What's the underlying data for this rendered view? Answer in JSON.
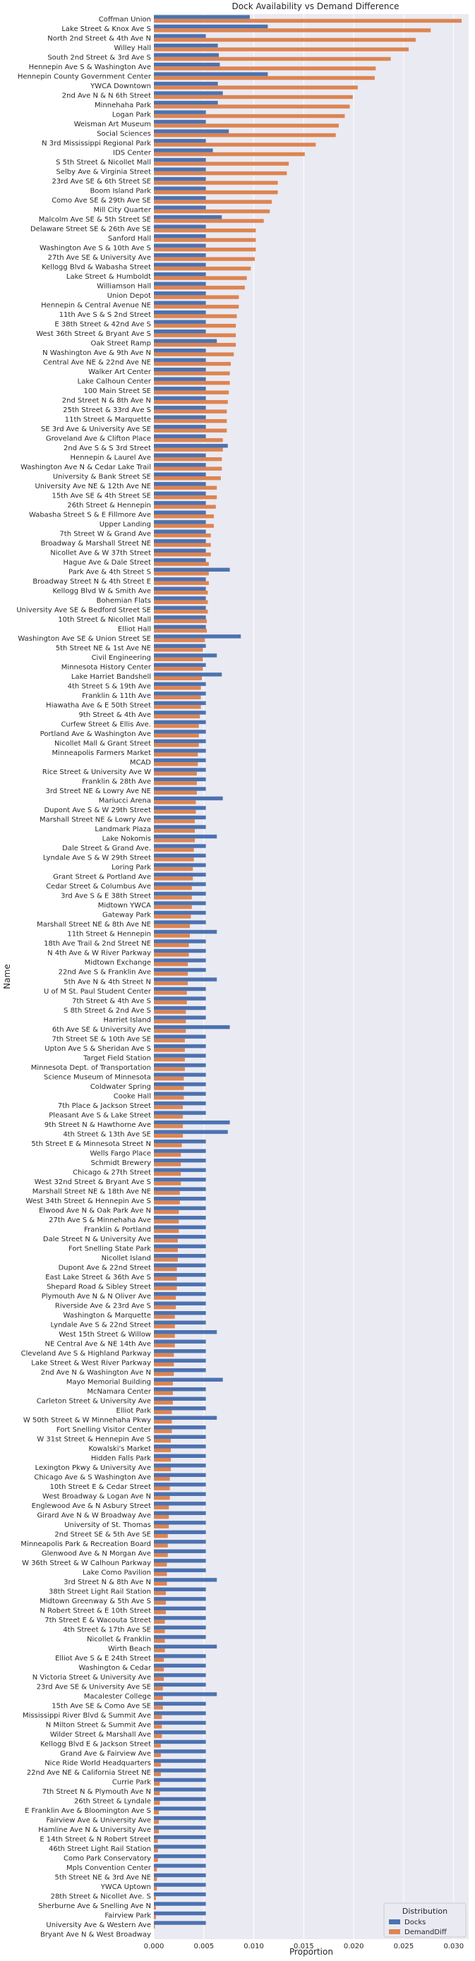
{
  "chart_data": {
    "type": "bar",
    "orientation": "horizontal",
    "title": "Dock Availability vs Demand Difference",
    "xlabel": "Proportion",
    "ylabel": "Name",
    "xlim": [
      0,
      0.0315
    ],
    "xticks": [
      "0.000",
      "0.005",
      "0.010",
      "0.015",
      "0.020",
      "0.025",
      "0.030"
    ],
    "grid": true,
    "legend": {
      "title": "Distribution",
      "position": "bottom-right"
    },
    "series": [
      {
        "name": "Docks",
        "color": "#4c72b0"
      },
      {
        "name": "DemandDiff",
        "color": "#dd8452"
      }
    ],
    "categories": [
      "Coffman Union",
      "Lake Street & Knox Ave S",
      "North 2nd Street & 4th Ave N",
      "Willey Hall",
      "South 2nd Street & 3rd Ave S",
      "Hennepin Ave S & Washington Ave",
      "Hennepin County Government Center",
      "YWCA Downtown",
      "2nd Ave N & N 6th Street",
      "Minnehaha Park",
      "Logan Park",
      "Weisman Art Museum",
      "Social Sciences",
      "N 3rd Mississippi Regional Park",
      "IDS Center",
      "S 5th Street & Nicollet Mall",
      "Selby Ave & Virginia Street",
      "23rd Ave SE & 6th Street SE",
      "Boom Island Park",
      "Como Ave SE & 29th Ave SE",
      "Mill City Quarter",
      "Malcolm Ave SE & 5th Street SE",
      "Delaware Street SE & 26th Ave SE",
      "Sanford Hall",
      "Washington Ave S & 10th Ave S",
      "27th Ave SE & University Ave",
      "Kellogg Blvd & Wabasha Street",
      "Lake Street & Humboldt",
      "Williamson Hall",
      "Union Depot",
      "Hennepin & Central Avenue NE",
      "11th Ave S & S 2nd Street",
      "E 38th Street & 42nd Ave S",
      "West 36th Street & Bryant Ave S",
      "Oak Street Ramp",
      "N Washington Ave & 9th Ave N",
      "Central Ave NE & 22nd Ave NE",
      "Walker Art Center",
      "Lake Calhoun Center",
      "100 Main Street SE",
      "2nd Street N & 8th Ave N",
      "25th Street & 33rd Ave S",
      "11th Street & Marquette",
      "SE 3rd Ave & University Ave SE",
      "Groveland Ave & Clifton Place",
      "2nd Ave S & S 3rd Street",
      "Hennepin & Laurel Ave",
      "Washington Ave N & Cedar Lake Trail",
      "University & Bank Street SE",
      "University Ave NE & 12th Ave NE",
      "15th Ave SE & 4th Street SE",
      "26th Street & Hennepin",
      "Wabasha Street S & E Fillmore Ave",
      "Upper Landing",
      "7th Street W & Grand Ave",
      "Broadway & Marshall Street NE",
      "Nicollet Ave & W 37th Street",
      "Hague Ave & Dale Street",
      "Park Ave & 4th Street S",
      "Broadway Street N & 4th Street E",
      "Kellogg Blvd W & Smith Ave",
      "Bohemian Flats",
      "University Ave SE & Bedford Street SE",
      "10th Street & Nicollet Mall",
      "Elliot Hall",
      "Washington Ave SE & Union Street SE",
      "5th Street NE & 1st Ave NE",
      "Civil Engineering",
      "Minnesota History Center",
      "Lake Harriet Bandshell",
      "4th Street S & 19th Ave",
      "Franklin & 11th Ave",
      "Hiawatha Ave & E 50th Street",
      "9th Street & 4th Ave",
      "Curfew Street & Ellis Ave.",
      "Portland Ave & Washington Ave",
      "Nicollet Mall & Grant Street",
      "Minneapolis Farmers Market",
      "MCAD",
      "Rice Street & University Ave W",
      "Franklin & 28th Ave",
      "3rd Street NE & Lowry Ave NE",
      "Mariucci Arena",
      "Dupont Ave S & W 29th Street",
      "Marshall Street NE & Lowry Ave",
      "Landmark Plaza",
      "Lake Nokomis",
      "Dale Street & Grand Ave.",
      "Lyndale Ave S & W 29th Street",
      "Loring Park",
      "Grant Street & Portland Ave",
      "Cedar Street & Columbus Ave",
      "3rd Ave S & E 38th Street",
      "Midtown YWCA",
      "Gateway Park",
      "Marshall Street NE & 8th Ave NE",
      "11th Street & Hennepin",
      "18th Ave Trail & 2nd Street NE",
      "N 4th Ave & W River Parkway",
      "Midtown Exchange",
      "22nd Ave S & Franklin Ave",
      "5th Ave N & 4th Street N",
      "U of M St. Paul Student Center",
      "7th Street & 4th Ave S",
      "S 8th Street & 2nd Ave S",
      "Harriet Island",
      "6th Ave SE & University Ave",
      "7th Street SE & 10th Ave SE",
      "Upton Ave S & Sheridan Ave S",
      "Target Field Station",
      "Minnesota Dept. of Transportation",
      "Science Museum of Minnesota",
      "Coldwater Spring",
      "Cooke Hall",
      "7th Place & Jackson Street",
      "Pleasant Ave S & Lake Street",
      "9th Street N & Hawthorne Ave",
      "4th Street & 13th Ave SE",
      "5th Street E & Minnesota Street N",
      "Wells Fargo Place",
      "Schmidt Brewery",
      "Chicago & 27th Street",
      "West 32nd Street & Bryant Ave S",
      "Marshall Street NE & 18th Ave NE",
      "West 34th Street & Hennepin Ave S",
      "Elwood Ave N & Oak Park Ave N",
      "27th Ave S & Minnehaha Ave",
      "Franklin & Portland",
      "Dale Street N & University Ave",
      "Fort Snelling State Park",
      "Nicollet Island",
      "Dupont Ave & 22nd Street",
      "East Lake Street & 36th Ave S",
      "Shepard Road & Sibley Street",
      "Plymouth Ave N & N Oliver Ave",
      "Riverside Ave & 23rd Ave S",
      "Washington & Marquette",
      "Lyndale Ave S & 22nd Street",
      "West 15th Street & Willow",
      "NE Central Ave & NE 14th Ave",
      "Cleveland Ave S & Highland Parkway",
      "Lake Street & West River Parkway",
      "2nd Ave N & Washington Ave N",
      "Mayo Memorial Building",
      "McNamara Center",
      "Carleton Street & University Ave",
      "Elliot Park",
      "W 50th Street & W Minnehaha Pkwy",
      "Fort Snelling Visitor Center",
      "W 31st Street & Hennepin Ave S",
      "Kowalski's Market",
      "Hidden Falls Park",
      "Lexington Pkwy & University Ave",
      "Chicago Ave & S Washington Ave",
      "10th Street E & Cedar Street",
      "West Broadway & Logan Ave N",
      "Englewood Ave & N Asbury Street",
      "Girard Ave N & W Broadway Ave",
      "University of St. Thomas",
      "2nd Street SE & 5th Ave SE",
      "Minneapolis Park & Recreation Board",
      "Glenwood Ave & N Morgan Ave",
      "W 36th Street & W Calhoun Parkway",
      "Lake Como Pavilion",
      "3rd Street N & 8th Ave N",
      "38th Street Light Rail Station",
      "Midtown Greenway & 5th Ave S",
      "N Robert Street & E 10th Street",
      "7th Street E & Wacouta Street",
      "4th Street & 17th Ave SE",
      "Nicollet & Franklin",
      "Wirth Beach",
      "Elliot Ave S & E 24th Street",
      "Washington & Cedar",
      "N Victoria Street & University Ave",
      "23rd Ave SE & University Ave SE",
      "Macalester College",
      "15th Ave SE & Como Ave SE",
      "Mississippi River Blvd & Summit Ave",
      "N Milton Street & Summit Ave",
      "Wilder Street & Marshall Ave",
      "Kellogg Blvd E & Jackson Street",
      "Grand Ave & Fairview Ave",
      "Nice Ride World Headquarters",
      "22nd Ave NE & California Street NE",
      "Currie Park",
      "7th Street N & Plymouth Ave N",
      "26th Street & Lyndale",
      "E Franklin Ave & Bloomington Ave S",
      "Fairview Ave & University Ave",
      "Hamline Ave N & University Ave",
      "E 14th Street & N Robert Street",
      "46th Street Light Rail Station",
      "Como Park Conservatory",
      "Mpls Convention Center",
      "5th Street NE & 3rd Ave NE",
      "YWCA Uptown",
      "28th Street & Nicollet Ave. S",
      "Sherburne Ave & Snelling Ave N",
      "Fairview Park",
      "University Ave & Western Ave",
      "Bryant Ave N & West Broadway"
    ],
    "docks": [
      0.0096,
      0.0114,
      0.0052,
      0.0064,
      0.0065,
      0.0066,
      0.0114,
      0.0064,
      0.0069,
      0.0064,
      0.0052,
      0.0052,
      0.0075,
      0.0052,
      0.0059,
      0.0052,
      0.0052,
      0.0052,
      0.0052,
      0.0052,
      0.0052,
      0.0068,
      0.0052,
      0.0052,
      0.0052,
      0.0052,
      0.0052,
      0.0052,
      0.0052,
      0.0052,
      0.0052,
      0.0052,
      0.0052,
      0.0052,
      0.0063,
      0.0052,
      0.0052,
      0.0052,
      0.0052,
      0.0052,
      0.0052,
      0.0052,
      0.0052,
      0.0052,
      0.0052,
      0.0074,
      0.0052,
      0.0052,
      0.0052,
      0.0052,
      0.0052,
      0.0052,
      0.0052,
      0.0052,
      0.0052,
      0.0052,
      0.0052,
      0.0052,
      0.0076,
      0.0052,
      0.0052,
      0.0052,
      0.0052,
      0.0052,
      0.0052,
      0.0087,
      0.0052,
      0.0063,
      0.0052,
      0.0068,
      0.0052,
      0.0052,
      0.0052,
      0.0052,
      0.0052,
      0.0052,
      0.0052,
      0.0052,
      0.0052,
      0.0052,
      0.0052,
      0.0052,
      0.0069,
      0.0052,
      0.0052,
      0.0052,
      0.0063,
      0.0052,
      0.0052,
      0.0052,
      0.0052,
      0.0052,
      0.0052,
      0.0052,
      0.0052,
      0.0052,
      0.0063,
      0.0052,
      0.0052,
      0.0052,
      0.0052,
      0.0063,
      0.0052,
      0.0052,
      0.0052,
      0.0052,
      0.0076,
      0.0052,
      0.0052,
      0.0052,
      0.0052,
      0.0052,
      0.0052,
      0.0052,
      0.0052,
      0.0052,
      0.0076,
      0.0074,
      0.0052,
      0.0052,
      0.0052,
      0.0052,
      0.0052,
      0.0052,
      0.0052,
      0.0052,
      0.0052,
      0.0052,
      0.0052,
      0.0052,
      0.0052,
      0.0052,
      0.0052,
      0.0052,
      0.0052,
      0.0052,
      0.0052,
      0.0052,
      0.0063,
      0.0052,
      0.0052,
      0.0052,
      0.0052,
      0.0069,
      0.0052,
      0.0052,
      0.0052,
      0.0063,
      0.0052,
      0.0052,
      0.0052,
      0.0052,
      0.0052,
      0.0052,
      0.0052,
      0.0052,
      0.0052,
      0.0052,
      0.0052,
      0.0052,
      0.0052,
      0.0052,
      0.0052,
      0.0052,
      0.0063,
      0.0052,
      0.0052,
      0.0052,
      0.0052,
      0.0052,
      0.0052,
      0.0063,
      0.0052,
      0.0052,
      0.0052,
      0.0052,
      0.0063,
      0.0052,
      0.0052,
      0.0052,
      0.0052,
      0.0052,
      0.0052,
      0.0052,
      0.0052,
      0.0052,
      0.0052,
      0.0052,
      0.0052,
      0.0052,
      0.0052,
      0.0052,
      0.0052,
      0.0052,
      0.0052,
      0.0052,
      0.0052,
      0.0052,
      0.0052,
      0.0052,
      0.0052
    ],
    "demanddiff": [
      0.0308,
      0.0277,
      0.0262,
      0.0255,
      0.0237,
      0.0222,
      0.0221,
      0.0204,
      0.0199,
      0.0196,
      0.0191,
      0.0185,
      0.0182,
      0.0162,
      0.0151,
      0.0135,
      0.0133,
      0.0124,
      0.0124,
      0.0118,
      0.0116,
      0.011,
      0.0102,
      0.0102,
      0.0102,
      0.0101,
      0.0097,
      0.0093,
      0.0091,
      0.0085,
      0.0085,
      0.0083,
      0.0082,
      0.0082,
      0.0082,
      0.008,
      0.0077,
      0.0076,
      0.0076,
      0.0075,
      0.0074,
      0.0073,
      0.0073,
      0.0073,
      0.0069,
      0.0069,
      0.0068,
      0.0068,
      0.0067,
      0.0063,
      0.0063,
      0.0062,
      0.006,
      0.006,
      0.0057,
      0.0057,
      0.0057,
      0.0055,
      0.0055,
      0.0055,
      0.0054,
      0.0054,
      0.0054,
      0.0053,
      0.0053,
      0.0051,
      0.0049,
      0.0049,
      0.0049,
      0.0048,
      0.0047,
      0.0047,
      0.0047,
      0.0046,
      0.0045,
      0.0045,
      0.0045,
      0.0044,
      0.0044,
      0.0043,
      0.0043,
      0.0043,
      0.0042,
      0.0042,
      0.0041,
      0.0041,
      0.0041,
      0.004,
      0.004,
      0.0039,
      0.0039,
      0.0038,
      0.0038,
      0.0038,
      0.0037,
      0.0036,
      0.0036,
      0.0035,
      0.0035,
      0.0034,
      0.0034,
      0.0034,
      0.0033,
      0.0033,
      0.0032,
      0.0032,
      0.0032,
      0.0031,
      0.0031,
      0.0031,
      0.0031,
      0.003,
      0.003,
      0.003,
      0.0029,
      0.0029,
      0.0029,
      0.0029,
      0.0028,
      0.0027,
      0.0027,
      0.0027,
      0.0027,
      0.0026,
      0.0026,
      0.0025,
      0.0025,
      0.0025,
      0.0024,
      0.0024,
      0.0024,
      0.0023,
      0.0023,
      0.0023,
      0.0022,
      0.0022,
      0.0021,
      0.0021,
      0.0021,
      0.0021,
      0.002,
      0.002,
      0.002,
      0.0019,
      0.0019,
      0.0019,
      0.0018,
      0.0018,
      0.0018,
      0.0017,
      0.0017,
      0.0017,
      0.0017,
      0.0016,
      0.0016,
      0.0016,
      0.0015,
      0.0015,
      0.0015,
      0.0014,
      0.0014,
      0.0014,
      0.0013,
      0.0013,
      0.0013,
      0.0012,
      0.0012,
      0.0012,
      0.0011,
      0.0011,
      0.0011,
      0.0011,
      0.001,
      0.001,
      0.001,
      0.0009,
      0.0009,
      0.0009,
      0.0008,
      0.0008,
      0.0008,
      0.0007,
      0.0007,
      0.0007,
      0.0007,
      0.0006,
      0.0006,
      0.0006,
      0.0005,
      0.0005,
      0.0005,
      0.0004,
      0.0004,
      0.0004,
      0.0003,
      0.0003,
      0.0003,
      0.0002,
      0.0002,
      0.0002,
      0.0001
    ]
  }
}
